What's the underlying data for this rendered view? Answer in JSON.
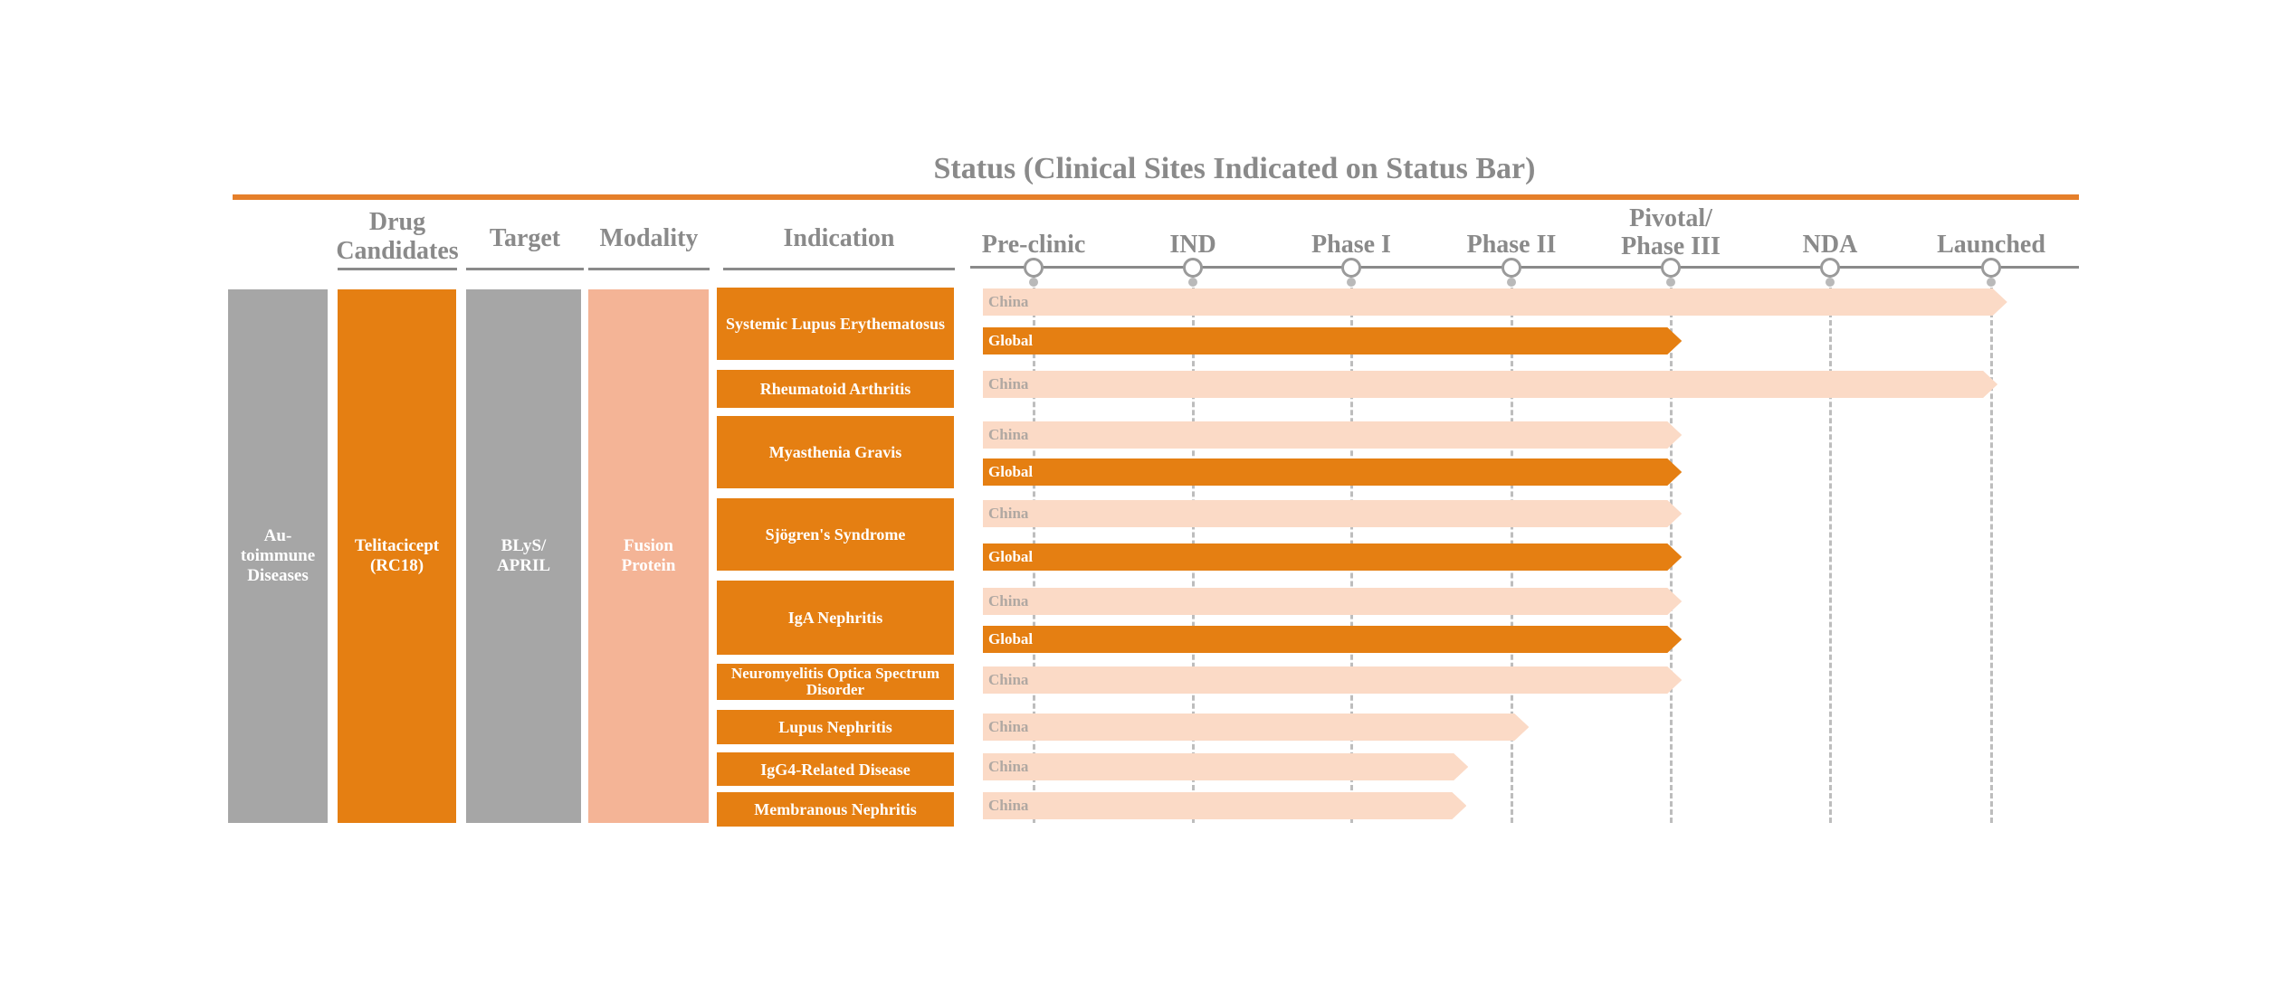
{
  "title": "Status (Clinical Sites Indicated on Status Bar)",
  "colors": {
    "accent_orange": "#e57f12",
    "light_peach": "#fbdac6",
    "modality_salmon": "#f4b496",
    "gray_block": "#a6a6a6",
    "heading_gray": "#8a8a8a"
  },
  "columns": {
    "drug": "Drug\nCandidates",
    "target": "Target",
    "modality": "Modality",
    "indication": "Indication"
  },
  "stages": [
    "Pre-clinic",
    "IND",
    "Phase I",
    "Phase II",
    "Pivotal/\nPhase III",
    "NDA",
    "Launched"
  ],
  "therapeutic_area": "Au-\ntoimmune\nDiseases",
  "drug_candidate": "Telitacicept\n(RC18)",
  "target_value": "BLyS/\nAPRIL",
  "modality_value": "Fusion\nProtein",
  "indications": [
    "Systemic Lupus Erythematosus",
    "Rheumatoid Arthritis",
    "Myasthenia Gravis",
    "Sjögren's Syndrome",
    "IgA Nephritis",
    "Neuromyelitis Optica Spectrum Disorder",
    "Lupus Nephritis",
    "IgG4-Related Disease",
    "Membranous Nephritis"
  ],
  "bars": [
    {
      "site": "China",
      "stage_reached": 6.1
    },
    {
      "site": "Global",
      "stage_reached": 4.07
    },
    {
      "site": "China",
      "stage_reached": 6.04
    },
    {
      "site": "China",
      "stage_reached": 4.07
    },
    {
      "site": "Global",
      "stage_reached": 4.07
    },
    {
      "site": "China",
      "stage_reached": 4.07
    },
    {
      "site": "Global",
      "stage_reached": 4.07
    },
    {
      "site": "China",
      "stage_reached": 4.07
    },
    {
      "site": "Global",
      "stage_reached": 4.07
    },
    {
      "site": "China",
      "stage_reached": 4.07
    },
    {
      "site": "China",
      "stage_reached": 3.11
    },
    {
      "site": "China",
      "stage_reached": 2.73
    },
    {
      "site": "China",
      "stage_reached": 2.72
    }
  ]
}
